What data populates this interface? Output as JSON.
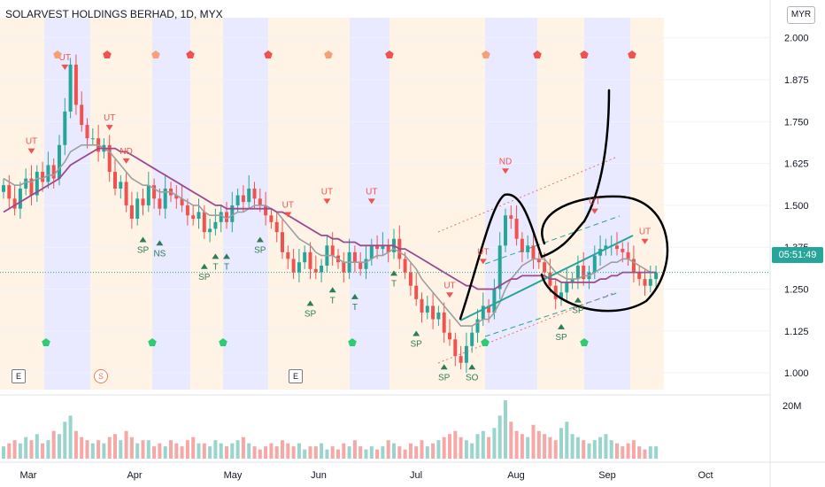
{
  "header": {
    "title": "SOLARVEST HOLDINGS BERHAD, 1D, MYX",
    "currency_button": "MYR"
  },
  "price_tag": {
    "time": "05:51:49"
  },
  "events": [
    {
      "label": "E",
      "kind": "earnings"
    },
    {
      "label": "S",
      "kind": "split"
    },
    {
      "label": "E",
      "kind": "earnings"
    }
  ],
  "colors": {
    "up": "#26a69a",
    "down": "#ef5350",
    "ma_fast": "#9e9e9e",
    "ma_slow": "#9c4a8f",
    "trend_line": "#26a69a",
    "band_blue": "#e9e9ff",
    "band_orange": "#fff3e6"
  },
  "chart_data": {
    "type": "candlestick",
    "title": "SOLARVEST HOLDINGS BERHAD, 1D, MYX",
    "ylim": [
      0.95,
      2.06
    ],
    "y_ticks": [
      "2.000",
      "1.875",
      "1.750",
      "1.625",
      "1.500",
      "1.375",
      "1.250",
      "1.125",
      "1.000"
    ],
    "x_ticks": [
      "Mar",
      "Apr",
      "May",
      "Jun",
      "Jul",
      "Aug",
      "Sep",
      "Oct"
    ],
    "volume_label": "20M",
    "close": [
      1.56,
      1.52,
      1.49,
      1.55,
      1.58,
      1.53,
      1.6,
      1.57,
      1.62,
      1.58,
      1.68,
      1.78,
      1.92,
      1.8,
      1.74,
      1.7,
      1.7,
      1.66,
      1.68,
      1.6,
      1.55,
      1.57,
      1.5,
      1.46,
      1.52,
      1.5,
      1.56,
      1.52,
      1.49,
      1.55,
      1.53,
      1.52,
      1.5,
      1.47,
      1.46,
      1.48,
      1.42,
      1.43,
      1.45,
      1.48,
      1.45,
      1.5,
      1.53,
      1.51,
      1.55,
      1.52,
      1.5,
      1.47,
      1.45,
      1.42,
      1.36,
      1.34,
      1.3,
      1.33,
      1.36,
      1.31,
      1.3,
      1.32,
      1.38,
      1.35,
      1.33,
      1.3,
      1.36,
      1.33,
      1.31,
      1.34,
      1.38,
      1.37,
      1.38,
      1.36,
      1.4,
      1.34,
      1.3,
      1.26,
      1.22,
      1.18,
      1.2,
      1.16,
      1.18,
      1.12,
      1.1,
      1.05,
      1.03,
      1.08,
      1.12,
      1.16,
      1.2,
      1.18,
      1.25,
      1.38,
      1.47,
      1.46,
      1.4,
      1.36,
      1.38,
      1.34,
      1.33,
      1.3,
      1.26,
      1.22,
      1.24,
      1.27,
      1.28,
      1.32,
      1.28,
      1.3,
      1.35,
      1.37,
      1.38,
      1.38,
      1.37,
      1.36,
      1.34,
      1.3,
      1.28,
      1.26,
      1.28,
      1.3
    ],
    "ma_fast": [
      1.58,
      1.57,
      1.56,
      1.56,
      1.57,
      1.57,
      1.58,
      1.58,
      1.59,
      1.59,
      1.61,
      1.63,
      1.66,
      1.67,
      1.68,
      1.68,
      1.68,
      1.68,
      1.67,
      1.66,
      1.64,
      1.62,
      1.6,
      1.58,
      1.57,
      1.56,
      1.56,
      1.55,
      1.54,
      1.54,
      1.54,
      1.53,
      1.52,
      1.51,
      1.5,
      1.5,
      1.48,
      1.47,
      1.47,
      1.47,
      1.46,
      1.47,
      1.48,
      1.48,
      1.49,
      1.5,
      1.5,
      1.5,
      1.49,
      1.48,
      1.46,
      1.44,
      1.42,
      1.4,
      1.39,
      1.38,
      1.36,
      1.35,
      1.35,
      1.35,
      1.34,
      1.33,
      1.33,
      1.33,
      1.33,
      1.33,
      1.34,
      1.35,
      1.35,
      1.36,
      1.37,
      1.36,
      1.35,
      1.33,
      1.31,
      1.28,
      1.26,
      1.24,
      1.22,
      1.2,
      1.18,
      1.16,
      1.14,
      1.14,
      1.14,
      1.15,
      1.16,
      1.16,
      1.18,
      1.21,
      1.25,
      1.28,
      1.3,
      1.32,
      1.33,
      1.34,
      1.34,
      1.34,
      1.32,
      1.3,
      1.29,
      1.28,
      1.28,
      1.28,
      1.29,
      1.29,
      1.3,
      1.31,
      1.32,
      1.33,
      1.33,
      1.34,
      1.34,
      1.33,
      1.32,
      1.31,
      1.3,
      1.3
    ],
    "ma_slow": [
      1.48,
      1.49,
      1.5,
      1.51,
      1.52,
      1.53,
      1.54,
      1.55,
      1.56,
      1.57,
      1.58,
      1.6,
      1.62,
      1.63,
      1.64,
      1.65,
      1.66,
      1.67,
      1.67,
      1.67,
      1.67,
      1.66,
      1.66,
      1.65,
      1.64,
      1.63,
      1.62,
      1.61,
      1.6,
      1.59,
      1.58,
      1.57,
      1.56,
      1.55,
      1.54,
      1.53,
      1.52,
      1.51,
      1.5,
      1.5,
      1.49,
      1.49,
      1.49,
      1.49,
      1.49,
      1.49,
      1.49,
      1.49,
      1.49,
      1.48,
      1.48,
      1.47,
      1.46,
      1.45,
      1.44,
      1.43,
      1.42,
      1.41,
      1.41,
      1.4,
      1.4,
      1.39,
      1.39,
      1.39,
      1.38,
      1.38,
      1.38,
      1.38,
      1.38,
      1.38,
      1.38,
      1.37,
      1.37,
      1.36,
      1.35,
      1.34,
      1.33,
      1.32,
      1.31,
      1.3,
      1.29,
      1.28,
      1.27,
      1.26,
      1.26,
      1.25,
      1.25,
      1.25,
      1.25,
      1.26,
      1.27,
      1.28,
      1.28,
      1.29,
      1.29,
      1.29,
      1.29,
      1.29,
      1.28,
      1.28,
      1.27,
      1.27,
      1.27,
      1.27,
      1.27,
      1.27,
      1.27,
      1.28,
      1.28,
      1.29,
      1.29,
      1.3,
      1.3,
      1.3,
      1.3,
      1.3,
      1.3,
      1.3
    ],
    "volume": [
      4,
      5,
      6,
      5,
      7,
      6,
      8,
      5,
      6,
      9,
      8,
      12,
      14,
      9,
      7,
      6,
      5,
      6,
      5,
      7,
      8,
      6,
      9,
      7,
      5,
      6,
      6,
      4,
      5,
      4,
      6,
      5,
      4,
      6,
      7,
      5,
      5,
      4,
      6,
      5,
      4,
      5,
      6,
      7,
      5,
      4,
      3,
      4,
      5,
      4,
      6,
      5,
      4,
      5,
      3,
      4,
      4,
      5,
      3,
      4,
      3,
      5,
      4,
      6,
      4,
      3,
      4,
      3,
      4,
      6,
      5,
      4,
      3,
      5,
      4,
      6,
      4,
      5,
      6,
      7,
      8,
      9,
      7,
      6,
      5,
      8,
      9,
      7,
      10,
      14,
      19,
      12,
      9,
      8,
      7,
      11,
      9,
      8,
      7,
      6,
      10,
      12,
      8,
      7,
      6,
      5,
      6,
      7,
      8,
      6,
      5,
      4,
      5,
      6,
      4,
      3,
      4,
      4
    ],
    "signals": [
      {
        "label": "UT",
        "i": 5,
        "kind": "sell"
      },
      {
        "label": "UT",
        "i": 11,
        "kind": "sell"
      },
      {
        "label": "UT",
        "i": 19,
        "kind": "sell"
      },
      {
        "label": "ND",
        "i": 22,
        "kind": "sell"
      },
      {
        "label": "SP",
        "i": 25,
        "kind": "buy"
      },
      {
        "label": "NS",
        "i": 28,
        "kind": "buy"
      },
      {
        "label": "SP",
        "i": 36,
        "kind": "buy"
      },
      {
        "label": "T",
        "i": 38,
        "kind": "buy"
      },
      {
        "label": "T",
        "i": 40,
        "kind": "buy"
      },
      {
        "label": "SP",
        "i": 46,
        "kind": "buy"
      },
      {
        "label": "UT",
        "i": 51,
        "kind": "sell"
      },
      {
        "label": "SP",
        "i": 55,
        "kind": "buy"
      },
      {
        "label": "T",
        "i": 59,
        "kind": "buy"
      },
      {
        "label": "UT",
        "i": 58,
        "kind": "sell"
      },
      {
        "label": "T",
        "i": 63,
        "kind": "buy"
      },
      {
        "label": "UT",
        "i": 66,
        "kind": "sell"
      },
      {
        "label": "T",
        "i": 70,
        "kind": "buy"
      },
      {
        "label": "SP",
        "i": 74,
        "kind": "buy"
      },
      {
        "label": "SP",
        "i": 79,
        "kind": "buy"
      },
      {
        "label": "UT",
        "i": 80,
        "kind": "sell"
      },
      {
        "label": "SO",
        "i": 84,
        "kind": "buy"
      },
      {
        "label": "UT",
        "i": 86,
        "kind": "sell"
      },
      {
        "label": "ND",
        "i": 90,
        "kind": "sell"
      },
      {
        "label": "SP",
        "i": 100,
        "kind": "buy"
      },
      {
        "label": "SP",
        "i": 103,
        "kind": "buy"
      },
      {
        "label": "UT",
        "i": 106,
        "kind": "sell"
      },
      {
        "label": "UT",
        "i": 115,
        "kind": "sell"
      }
    ]
  }
}
